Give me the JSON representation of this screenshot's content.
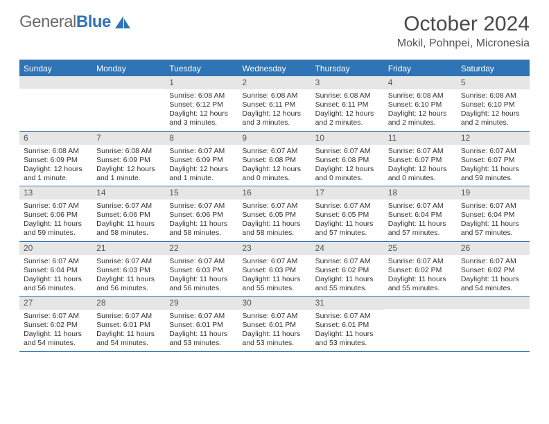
{
  "logo": {
    "word1": "General",
    "word2": "Blue"
  },
  "title": "October 2024",
  "location": "Mokil, Pohnpei, Micronesia",
  "colors": {
    "accent": "#2f74b5",
    "header_text": "#ffffff",
    "daynum_bg": "#e6e6e6",
    "body_text": "#333333",
    "logo_gray": "#6a6a6a"
  },
  "typography": {
    "title_fontsize": 30,
    "location_fontsize": 16,
    "dow_fontsize": 12,
    "daynum_fontsize": 12,
    "body_fontsize": 10.5
  },
  "days_of_week": [
    "Sunday",
    "Monday",
    "Tuesday",
    "Wednesday",
    "Thursday",
    "Friday",
    "Saturday"
  ],
  "weeks": [
    [
      null,
      null,
      {
        "n": "1",
        "sunrise": "Sunrise: 6:08 AM",
        "sunset": "Sunset: 6:12 PM",
        "daylight": "Daylight: 12 hours and 3 minutes."
      },
      {
        "n": "2",
        "sunrise": "Sunrise: 6:08 AM",
        "sunset": "Sunset: 6:11 PM",
        "daylight": "Daylight: 12 hours and 3 minutes."
      },
      {
        "n": "3",
        "sunrise": "Sunrise: 6:08 AM",
        "sunset": "Sunset: 6:11 PM",
        "daylight": "Daylight: 12 hours and 2 minutes."
      },
      {
        "n": "4",
        "sunrise": "Sunrise: 6:08 AM",
        "sunset": "Sunset: 6:10 PM",
        "daylight": "Daylight: 12 hours and 2 minutes."
      },
      {
        "n": "5",
        "sunrise": "Sunrise: 6:08 AM",
        "sunset": "Sunset: 6:10 PM",
        "daylight": "Daylight: 12 hours and 2 minutes."
      }
    ],
    [
      {
        "n": "6",
        "sunrise": "Sunrise: 6:08 AM",
        "sunset": "Sunset: 6:09 PM",
        "daylight": "Daylight: 12 hours and 1 minute."
      },
      {
        "n": "7",
        "sunrise": "Sunrise: 6:08 AM",
        "sunset": "Sunset: 6:09 PM",
        "daylight": "Daylight: 12 hours and 1 minute."
      },
      {
        "n": "8",
        "sunrise": "Sunrise: 6:07 AM",
        "sunset": "Sunset: 6:09 PM",
        "daylight": "Daylight: 12 hours and 1 minute."
      },
      {
        "n": "9",
        "sunrise": "Sunrise: 6:07 AM",
        "sunset": "Sunset: 6:08 PM",
        "daylight": "Daylight: 12 hours and 0 minutes."
      },
      {
        "n": "10",
        "sunrise": "Sunrise: 6:07 AM",
        "sunset": "Sunset: 6:08 PM",
        "daylight": "Daylight: 12 hours and 0 minutes."
      },
      {
        "n": "11",
        "sunrise": "Sunrise: 6:07 AM",
        "sunset": "Sunset: 6:07 PM",
        "daylight": "Daylight: 12 hours and 0 minutes."
      },
      {
        "n": "12",
        "sunrise": "Sunrise: 6:07 AM",
        "sunset": "Sunset: 6:07 PM",
        "daylight": "Daylight: 11 hours and 59 minutes."
      }
    ],
    [
      {
        "n": "13",
        "sunrise": "Sunrise: 6:07 AM",
        "sunset": "Sunset: 6:06 PM",
        "daylight": "Daylight: 11 hours and 59 minutes."
      },
      {
        "n": "14",
        "sunrise": "Sunrise: 6:07 AM",
        "sunset": "Sunset: 6:06 PM",
        "daylight": "Daylight: 11 hours and 58 minutes."
      },
      {
        "n": "15",
        "sunrise": "Sunrise: 6:07 AM",
        "sunset": "Sunset: 6:06 PM",
        "daylight": "Daylight: 11 hours and 58 minutes."
      },
      {
        "n": "16",
        "sunrise": "Sunrise: 6:07 AM",
        "sunset": "Sunset: 6:05 PM",
        "daylight": "Daylight: 11 hours and 58 minutes."
      },
      {
        "n": "17",
        "sunrise": "Sunrise: 6:07 AM",
        "sunset": "Sunset: 6:05 PM",
        "daylight": "Daylight: 11 hours and 57 minutes."
      },
      {
        "n": "18",
        "sunrise": "Sunrise: 6:07 AM",
        "sunset": "Sunset: 6:04 PM",
        "daylight": "Daylight: 11 hours and 57 minutes."
      },
      {
        "n": "19",
        "sunrise": "Sunrise: 6:07 AM",
        "sunset": "Sunset: 6:04 PM",
        "daylight": "Daylight: 11 hours and 57 minutes."
      }
    ],
    [
      {
        "n": "20",
        "sunrise": "Sunrise: 6:07 AM",
        "sunset": "Sunset: 6:04 PM",
        "daylight": "Daylight: 11 hours and 56 minutes."
      },
      {
        "n": "21",
        "sunrise": "Sunrise: 6:07 AM",
        "sunset": "Sunset: 6:03 PM",
        "daylight": "Daylight: 11 hours and 56 minutes."
      },
      {
        "n": "22",
        "sunrise": "Sunrise: 6:07 AM",
        "sunset": "Sunset: 6:03 PM",
        "daylight": "Daylight: 11 hours and 56 minutes."
      },
      {
        "n": "23",
        "sunrise": "Sunrise: 6:07 AM",
        "sunset": "Sunset: 6:03 PM",
        "daylight": "Daylight: 11 hours and 55 minutes."
      },
      {
        "n": "24",
        "sunrise": "Sunrise: 6:07 AM",
        "sunset": "Sunset: 6:02 PM",
        "daylight": "Daylight: 11 hours and 55 minutes."
      },
      {
        "n": "25",
        "sunrise": "Sunrise: 6:07 AM",
        "sunset": "Sunset: 6:02 PM",
        "daylight": "Daylight: 11 hours and 55 minutes."
      },
      {
        "n": "26",
        "sunrise": "Sunrise: 6:07 AM",
        "sunset": "Sunset: 6:02 PM",
        "daylight": "Daylight: 11 hours and 54 minutes."
      }
    ],
    [
      {
        "n": "27",
        "sunrise": "Sunrise: 6:07 AM",
        "sunset": "Sunset: 6:02 PM",
        "daylight": "Daylight: 11 hours and 54 minutes."
      },
      {
        "n": "28",
        "sunrise": "Sunrise: 6:07 AM",
        "sunset": "Sunset: 6:01 PM",
        "daylight": "Daylight: 11 hours and 54 minutes."
      },
      {
        "n": "29",
        "sunrise": "Sunrise: 6:07 AM",
        "sunset": "Sunset: 6:01 PM",
        "daylight": "Daylight: 11 hours and 53 minutes."
      },
      {
        "n": "30",
        "sunrise": "Sunrise: 6:07 AM",
        "sunset": "Sunset: 6:01 PM",
        "daylight": "Daylight: 11 hours and 53 minutes."
      },
      {
        "n": "31",
        "sunrise": "Sunrise: 6:07 AM",
        "sunset": "Sunset: 6:01 PM",
        "daylight": "Daylight: 11 hours and 53 minutes."
      },
      null,
      null
    ]
  ]
}
